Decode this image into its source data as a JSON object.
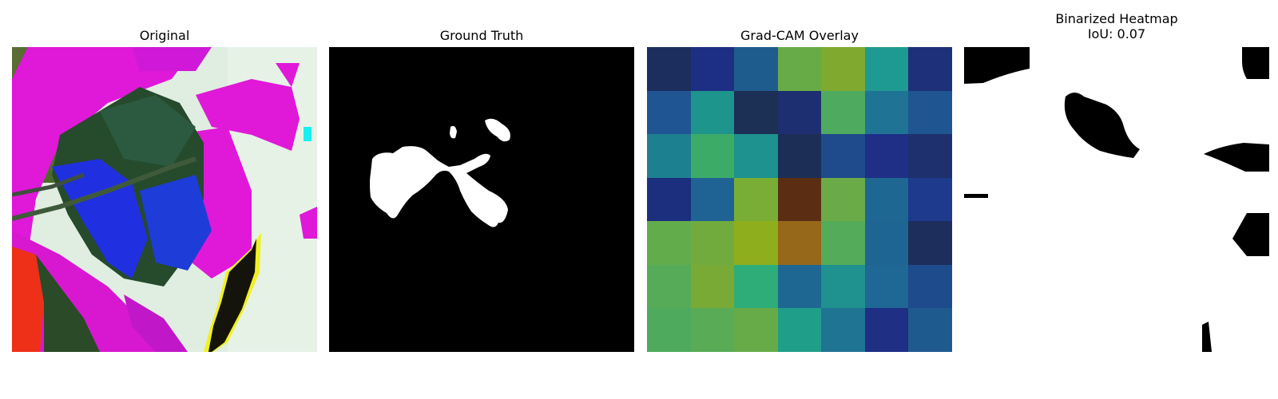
{
  "panels": {
    "original": {
      "title": "Original"
    },
    "ground_truth": {
      "title": "Ground Truth"
    },
    "gradcam": {
      "title": "Grad-CAM Overlay",
      "grid": [
        [
          "#1c2e5e",
          "#1c2f84",
          "#1e5c8e",
          "#67ab47",
          "#7faa2f",
          "#1f9a92",
          "#1e3079"
        ],
        [
          "#1f5592",
          "#1d958d",
          "#1c2f54",
          "#1d2f70",
          "#4eaa5e",
          "#1f7394",
          "#1f5591"
        ],
        [
          "#1d8091",
          "#3cab68",
          "#1d928f",
          "#1c2e55",
          "#1f4a8c",
          "#1e2f85",
          "#1e306d"
        ],
        [
          "#1c2e7e",
          "#1f6394",
          "#79ad36",
          "#5b2e14",
          "#6aab48",
          "#1f6793",
          "#1e3a8c"
        ],
        [
          "#63ac4c",
          "#71ab3e",
          "#8fae1d",
          "#96681a",
          "#54ab5a",
          "#1f6594",
          "#1d2e5d"
        ],
        [
          "#55ab58",
          "#79aa36",
          "#2fad78",
          "#1f6793",
          "#1f918f",
          "#1f6794",
          "#1e4b8c"
        ],
        [
          "#4eab5e",
          "#59ab56",
          "#66ab48",
          "#1f9f8a",
          "#1f7494",
          "#1e2f84",
          "#1f5a8f"
        ]
      ]
    },
    "binarized": {
      "title_line1": "Binarized Heatmap",
      "title_line2": "IoU: 0.07"
    }
  }
}
